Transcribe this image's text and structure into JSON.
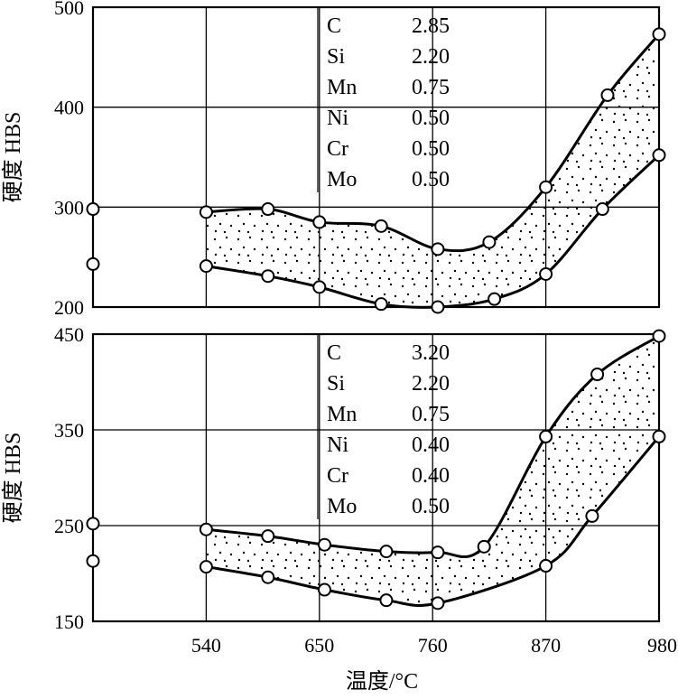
{
  "chart_data": [
    {
      "type": "line",
      "panel": "top",
      "ylabel": "硬度 HBS",
      "xlabel": "",
      "x_ticks": [
        "540",
        "650",
        "760",
        "870",
        "980"
      ],
      "y_ticks": [
        "500",
        "400",
        "300",
        "200"
      ],
      "xlim": [
        430,
        980
      ],
      "ylim": [
        200,
        500
      ],
      "grid": true,
      "composition": [
        {
          "element": "C",
          "value": "2.85"
        },
        {
          "element": "Si",
          "value": "2.20"
        },
        {
          "element": "Mn",
          "value": "0.75"
        },
        {
          "element": "Ni",
          "value": "0.50"
        },
        {
          "element": "Cr",
          "value": "0.50"
        },
        {
          "element": "Mo",
          "value": "0.50"
        }
      ],
      "series": [
        {
          "points": [
            [
              540,
              295
            ],
            [
              600,
              298
            ],
            [
              650,
              285
            ],
            [
              710,
              281
            ],
            [
              765,
              258
            ],
            [
              815,
              265
            ],
            [
              870,
              320
            ],
            [
              930,
              412
            ],
            [
              980,
              473
            ]
          ]
        },
        {
          "points": [
            [
              540,
              241
            ],
            [
              600,
              231
            ],
            [
              650,
              220
            ],
            [
              710,
              203
            ],
            [
              765,
              200
            ],
            [
              820,
              208
            ],
            [
              870,
              233
            ],
            [
              925,
              298
            ],
            [
              980,
              352
            ]
          ]
        }
      ],
      "start_points": [
        [
          430,
          298
        ],
        [
          430,
          243
        ]
      ]
    },
    {
      "type": "line",
      "panel": "bottom",
      "ylabel": "硬度 HBS",
      "xlabel": "温度/°C",
      "x_ticks": [
        "540",
        "650",
        "760",
        "870",
        "980"
      ],
      "y_ticks": [
        "450",
        "350",
        "250",
        "150"
      ],
      "xlim": [
        430,
        980
      ],
      "ylim": [
        150,
        450
      ],
      "grid": true,
      "composition": [
        {
          "element": "C",
          "value": "3.20"
        },
        {
          "element": "Si",
          "value": "2.20"
        },
        {
          "element": "Mn",
          "value": "0.75"
        },
        {
          "element": "Ni",
          "value": "0.40"
        },
        {
          "element": "Cr",
          "value": "0.40"
        },
        {
          "element": "Mo",
          "value": "0.50"
        }
      ],
      "series": [
        {
          "points": [
            [
              540,
              246
            ],
            [
              600,
              239
            ],
            [
              655,
              230
            ],
            [
              715,
              223
            ],
            [
              765,
              222
            ],
            [
              810,
              228
            ],
            [
              870,
              343
            ],
            [
              920,
              408
            ],
            [
              980,
              448
            ]
          ]
        },
        {
          "points": [
            [
              540,
              207
            ],
            [
              600,
              196
            ],
            [
              655,
              183
            ],
            [
              715,
              172
            ],
            [
              765,
              169
            ],
            [
              870,
              208
            ],
            [
              915,
              260
            ],
            [
              980,
              343
            ]
          ]
        }
      ],
      "start_points": [
        [
          430,
          252
        ],
        [
          430,
          213
        ]
      ]
    }
  ]
}
